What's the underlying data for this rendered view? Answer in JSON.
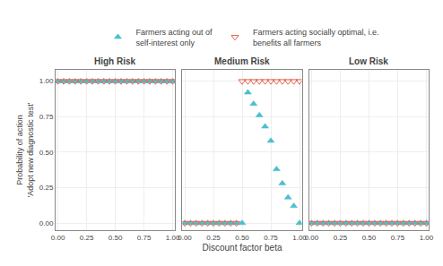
{
  "chart_data": [
    {
      "type": "scatter",
      "title": "High Risk",
      "ylabel": "Probability of action\n'Adopt new diagnostic test'",
      "x": [
        0.0,
        0.05,
        0.1,
        0.15,
        0.2,
        0.25,
        0.3,
        0.35,
        0.4,
        0.45,
        0.5,
        0.55,
        0.6,
        0.65,
        0.7,
        0.75,
        0.8,
        0.85,
        0.9,
        0.95,
        1.0
      ],
      "series": [
        {
          "name": "Farmers acting out of\nself-interest only",
          "color": "#4dbfcc",
          "marker": "triangle-up",
          "values": [
            1.0,
            1.0,
            1.0,
            1.0,
            1.0,
            1.0,
            1.0,
            1.0,
            1.0,
            1.0,
            1.0,
            1.0,
            1.0,
            1.0,
            1.0,
            1.0,
            1.0,
            1.0,
            1.0,
            1.0,
            1.0
          ]
        },
        {
          "name": "Farmers acting socially optimal, i.e.\nbenefits all farmers",
          "color": "#e8604c",
          "marker": "triangle-down-open",
          "values": [
            1.0,
            1.0,
            1.0,
            1.0,
            1.0,
            1.0,
            1.0,
            1.0,
            1.0,
            1.0,
            1.0,
            1.0,
            1.0,
            1.0,
            1.0,
            1.0,
            1.0,
            1.0,
            1.0,
            1.0,
            1.0
          ]
        }
      ],
      "xlim": [
        -0.02,
        1.02
      ],
      "ylim": [
        -0.05,
        1.08
      ],
      "xticks": [
        {
          "value": 0.0,
          "label": "0.00"
        },
        {
          "value": 0.25,
          "label": "0.25"
        },
        {
          "value": 0.5,
          "label": "0.50"
        },
        {
          "value": 0.75,
          "label": "0.75"
        },
        {
          "value": 1.0,
          "label": "1.00"
        }
      ],
      "yticks": [
        {
          "value": 0.0,
          "label": "0.00"
        },
        {
          "value": 0.25,
          "label": "0.25"
        },
        {
          "value": 0.5,
          "label": "0.50"
        },
        {
          "value": 0.75,
          "label": "0.75"
        },
        {
          "value": 1.0,
          "label": "1.00"
        }
      ],
      "grid": true,
      "legend": "top"
    },
    {
      "type": "scatter",
      "title": "Medium Risk",
      "xlabel": "Discount factor beta",
      "x": [
        0.0,
        0.05,
        0.1,
        0.15,
        0.2,
        0.25,
        0.3,
        0.35,
        0.4,
        0.45,
        0.5,
        0.55,
        0.6,
        0.65,
        0.7,
        0.75,
        0.8,
        0.85,
        0.9,
        0.95,
        1.0
      ],
      "series": [
        {
          "name": "Farmers acting out of\nself-interest only",
          "color": "#4dbfcc",
          "marker": "triangle-up",
          "values": [
            0.0,
            0.0,
            0.0,
            0.0,
            0.0,
            0.0,
            0.0,
            0.0,
            0.0,
            0.0,
            0.0,
            0.92,
            0.84,
            0.76,
            0.68,
            0.58,
            0.38,
            0.28,
            0.18,
            0.12,
            0.0
          ]
        },
        {
          "name": "Farmers acting socially optimal, i.e.\nbenefits all farmers",
          "color": "#e8604c",
          "marker": "triangle-down-open",
          "values": [
            0.0,
            0.0,
            0.0,
            0.0,
            0.0,
            0.0,
            0.0,
            0.0,
            0.0,
            0.0,
            1.0,
            1.0,
            1.0,
            1.0,
            1.0,
            1.0,
            1.0,
            1.0,
            1.0,
            1.0,
            1.0
          ]
        }
      ],
      "xlim": [
        -0.02,
        1.02
      ],
      "ylim": [
        -0.05,
        1.08
      ],
      "xticks": [
        {
          "value": 0.0,
          "label": "0.00"
        },
        {
          "value": 0.25,
          "label": "0.25"
        },
        {
          "value": 0.5,
          "label": "0.50"
        },
        {
          "value": 0.75,
          "label": "0.75"
        },
        {
          "value": 1.0,
          "label": "1.00"
        }
      ],
      "yticks": [
        0.0,
        0.25,
        0.5,
        0.75,
        1.0
      ],
      "grid": true,
      "tick_labels": "x"
    },
    {
      "type": "scatter",
      "title": "Low Risk",
      "x": [
        0.0,
        0.05,
        0.1,
        0.15,
        0.2,
        0.25,
        0.3,
        0.35,
        0.4,
        0.45,
        0.5,
        0.55,
        0.6,
        0.65,
        0.7,
        0.75,
        0.8,
        0.85,
        0.9,
        0.95,
        1.0
      ],
      "series": [
        {
          "name": "Farmers acting out of\nself-interest only",
          "color": "#4dbfcc",
          "marker": "triangle-up",
          "values": [
            0.0,
            0.0,
            0.0,
            0.0,
            0.0,
            0.0,
            0.0,
            0.0,
            0.0,
            0.0,
            0.0,
            0.0,
            0.0,
            0.0,
            0.0,
            0.0,
            0.0,
            0.0,
            0.0,
            0.0,
            0.0
          ]
        },
        {
          "name": "Farmers acting socially optimal, i.e.\nbenefits all farmers",
          "color": "#e8604c",
          "marker": "triangle-down-open",
          "values": [
            0.0,
            0.0,
            0.0,
            0.0,
            0.0,
            0.0,
            0.0,
            0.0,
            0.0,
            0.0,
            0.0,
            0.0,
            0.0,
            0.0,
            0.0,
            0.0,
            0.0,
            0.0,
            0.0,
            0.0,
            0.0
          ]
        }
      ],
      "xlim": [
        -0.02,
        1.02
      ],
      "ylim": [
        -0.05,
        1.08
      ],
      "xticks": [
        {
          "value": 0.0,
          "label": "0.00"
        },
        {
          "value": 0.25,
          "label": "0.25"
        },
        {
          "value": 0.5,
          "label": "0.50"
        },
        {
          "value": 0.75,
          "label": "0.75"
        },
        {
          "value": 1.0,
          "label": "1.00"
        }
      ],
      "yticks": [
        0.0,
        0.25,
        0.5,
        0.75,
        1.0
      ],
      "grid": true,
      "tick_labels": "x"
    }
  ]
}
